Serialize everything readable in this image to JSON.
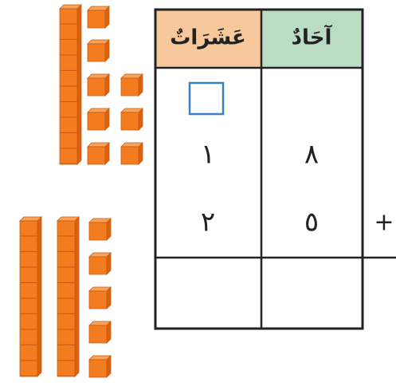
{
  "table": {
    "headers": {
      "tens": "عَشَرَاتٌ",
      "ones": "آحَادٌ"
    },
    "rows": [
      {
        "tens": "١",
        "ones": "٨"
      },
      {
        "tens": "٢",
        "ones": "٥"
      }
    ],
    "operator": "+"
  }
}
